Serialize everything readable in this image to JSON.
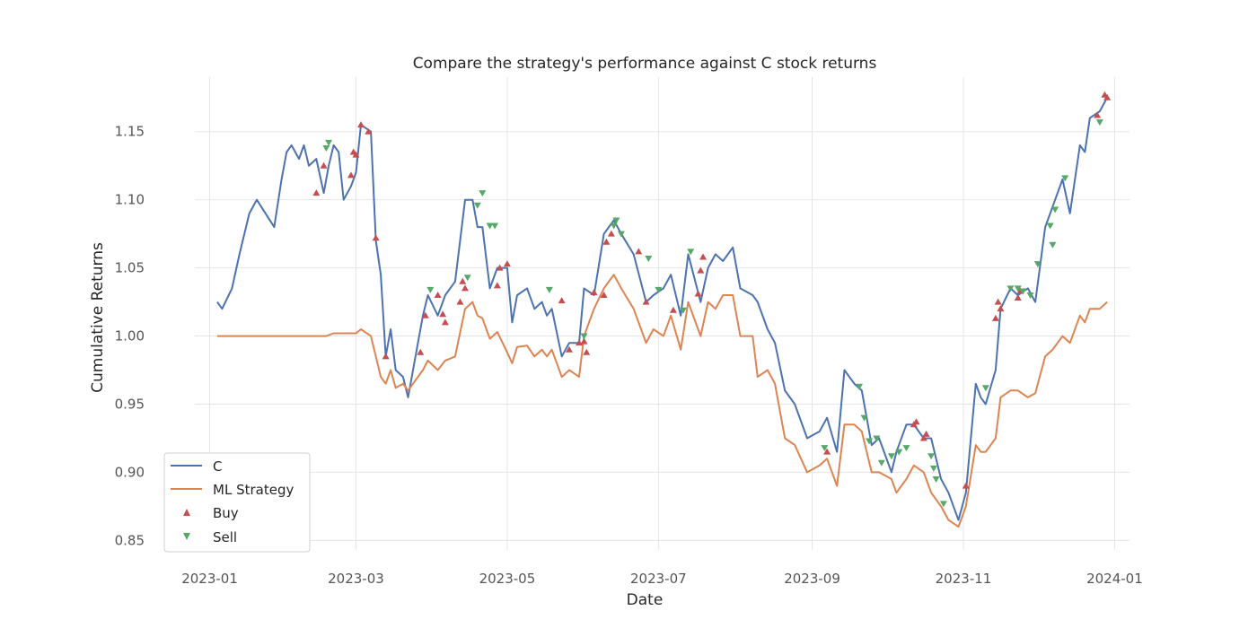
{
  "chart_data": {
    "type": "line",
    "title": "Compare the strategy's performance against C stock returns",
    "xlabel": "Date",
    "ylabel": "Cumulative Returns",
    "xlim": [
      "2022-12-26",
      "2024-01-07"
    ],
    "ylim": [
      0.843,
      1.19
    ],
    "xticks": [
      "2023-01",
      "2023-03",
      "2023-05",
      "2023-07",
      "2023-09",
      "2023-11",
      "2024-01"
    ],
    "xtick_dates": [
      "2023-01-01",
      "2023-03-01",
      "2023-05-01",
      "2023-07-01",
      "2023-09-01",
      "2023-11-01",
      "2024-01-01"
    ],
    "yticks": [
      0.85,
      0.9,
      0.95,
      1.0,
      1.05,
      1.1,
      1.15
    ],
    "ytick_labels": [
      "0.85",
      "0.90",
      "0.95",
      "1.00",
      "1.05",
      "1.10",
      "1.15"
    ],
    "grid": true,
    "legend": {
      "placement": "lower-left",
      "entries": [
        "C",
        "ML Strategy",
        "Buy",
        "Sell"
      ]
    },
    "colors": {
      "C": "#4c72b0",
      "ML Strategy": "#dd8452",
      "Buy": "#c44e52",
      "Sell": "#55a868",
      "grid": "#e5e5e5"
    },
    "series": [
      {
        "name": "C",
        "x": [
          "2023-01-04",
          "2023-01-06",
          "2023-01-10",
          "2023-01-13",
          "2023-01-17",
          "2023-01-20",
          "2023-01-27",
          "2023-01-30",
          "2023-02-01",
          "2023-02-03",
          "2023-02-06",
          "2023-02-08",
          "2023-02-10",
          "2023-02-13",
          "2023-02-16",
          "2023-02-18",
          "2023-02-20",
          "2023-02-22",
          "2023-02-24",
          "2023-02-27",
          "2023-03-01",
          "2023-03-03",
          "2023-03-07",
          "2023-03-09",
          "2023-03-11",
          "2023-03-13",
          "2023-03-15",
          "2023-03-17",
          "2023-03-20",
          "2023-03-22",
          "2023-03-24",
          "2023-03-28",
          "2023-03-30",
          "2023-04-03",
          "2023-04-06",
          "2023-04-10",
          "2023-04-14",
          "2023-04-17",
          "2023-04-19",
          "2023-04-21",
          "2023-04-24",
          "2023-04-27",
          "2023-05-01",
          "2023-05-03",
          "2023-05-05",
          "2023-05-09",
          "2023-05-12",
          "2023-05-15",
          "2023-05-17",
          "2023-05-19",
          "2023-05-23",
          "2023-05-26",
          "2023-05-30",
          "2023-06-01",
          "2023-06-05",
          "2023-06-09",
          "2023-06-13",
          "2023-06-16",
          "2023-06-21",
          "2023-06-26",
          "2023-06-29",
          "2023-07-03",
          "2023-07-06",
          "2023-07-10",
          "2023-07-13",
          "2023-07-18",
          "2023-07-21",
          "2023-07-24",
          "2023-07-27",
          "2023-07-31",
          "2023-08-03",
          "2023-08-08",
          "2023-08-10",
          "2023-08-14",
          "2023-08-17",
          "2023-08-21",
          "2023-08-25",
          "2023-08-30",
          "2023-09-04",
          "2023-09-07",
          "2023-09-11",
          "2023-09-14",
          "2023-09-18",
          "2023-09-21",
          "2023-09-25",
          "2023-09-28",
          "2023-10-03",
          "2023-10-05",
          "2023-10-09",
          "2023-10-12",
          "2023-10-16",
          "2023-10-19",
          "2023-10-23",
          "2023-10-26",
          "2023-10-30",
          "2023-11-02",
          "2023-11-06",
          "2023-11-08",
          "2023-11-10",
          "2023-11-14",
          "2023-11-16",
          "2023-11-20",
          "2023-11-23",
          "2023-11-27",
          "2023-11-30",
          "2023-12-04",
          "2023-12-07",
          "2023-12-11",
          "2023-12-14",
          "2023-12-18",
          "2023-12-20",
          "2023-12-22",
          "2023-12-26",
          "2023-12-29"
        ],
        "values": [
          1.025,
          1.02,
          1.035,
          1.06,
          1.09,
          1.1,
          1.08,
          1.115,
          1.135,
          1.14,
          1.13,
          1.14,
          1.125,
          1.13,
          1.105,
          1.125,
          1.14,
          1.135,
          1.1,
          1.11,
          1.12,
          1.155,
          1.15,
          1.07,
          1.045,
          0.985,
          1.005,
          0.975,
          0.97,
          0.955,
          0.975,
          1.015,
          1.03,
          1.015,
          1.03,
          1.04,
          1.1,
          1.1,
          1.08,
          1.08,
          1.035,
          1.05,
          1.05,
          1.01,
          1.03,
          1.035,
          1.02,
          1.025,
          1.015,
          1.02,
          0.985,
          0.995,
          0.995,
          1.035,
          1.03,
          1.075,
          1.085,
          1.075,
          1.06,
          1.025,
          1.03,
          1.035,
          1.045,
          1.015,
          1.06,
          1.025,
          1.05,
          1.06,
          1.055,
          1.065,
          1.035,
          1.03,
          1.025,
          1.005,
          0.995,
          0.96,
          0.95,
          0.925,
          0.93,
          0.94,
          0.915,
          0.975,
          0.965,
          0.96,
          0.92,
          0.925,
          0.9,
          0.915,
          0.935,
          0.935,
          0.925,
          0.925,
          0.895,
          0.885,
          0.865,
          0.885,
          0.965,
          0.955,
          0.95,
          0.975,
          1.02,
          1.035,
          1.03,
          1.035,
          1.025,
          1.08,
          1.095,
          1.115,
          1.09,
          1.14,
          1.135,
          1.16,
          1.165,
          1.175
        ]
      },
      {
        "name": "ML Strategy",
        "x": [
          "2023-01-04",
          "2023-02-17",
          "2023-02-20",
          "2023-02-24",
          "2023-03-01",
          "2023-03-03",
          "2023-03-07",
          "2023-03-09",
          "2023-03-11",
          "2023-03-13",
          "2023-03-15",
          "2023-03-17",
          "2023-03-20",
          "2023-03-22",
          "2023-03-24",
          "2023-03-28",
          "2023-03-30",
          "2023-04-03",
          "2023-04-06",
          "2023-04-10",
          "2023-04-14",
          "2023-04-17",
          "2023-04-19",
          "2023-04-21",
          "2023-04-24",
          "2023-04-27",
          "2023-05-01",
          "2023-05-03",
          "2023-05-05",
          "2023-05-09",
          "2023-05-12",
          "2023-05-15",
          "2023-05-17",
          "2023-05-19",
          "2023-05-23",
          "2023-05-26",
          "2023-05-30",
          "2023-06-01",
          "2023-06-05",
          "2023-06-09",
          "2023-06-13",
          "2023-06-16",
          "2023-06-21",
          "2023-06-26",
          "2023-06-29",
          "2023-07-03",
          "2023-07-06",
          "2023-07-10",
          "2023-07-13",
          "2023-07-18",
          "2023-07-21",
          "2023-07-24",
          "2023-07-27",
          "2023-07-31",
          "2023-08-03",
          "2023-08-08",
          "2023-08-10",
          "2023-08-14",
          "2023-08-17",
          "2023-08-21",
          "2023-08-25",
          "2023-08-30",
          "2023-09-04",
          "2023-09-07",
          "2023-09-11",
          "2023-09-14",
          "2023-09-18",
          "2023-09-21",
          "2023-09-25",
          "2023-09-28",
          "2023-10-03",
          "2023-10-05",
          "2023-10-09",
          "2023-10-12",
          "2023-10-16",
          "2023-10-19",
          "2023-10-23",
          "2023-10-26",
          "2023-10-30",
          "2023-11-02",
          "2023-11-06",
          "2023-11-08",
          "2023-11-10",
          "2023-11-14",
          "2023-11-16",
          "2023-11-20",
          "2023-11-23",
          "2023-11-27",
          "2023-11-30",
          "2023-12-04",
          "2023-12-07",
          "2023-12-11",
          "2023-12-14",
          "2023-12-18",
          "2023-12-20",
          "2023-12-22",
          "2023-12-26",
          "2023-12-29"
        ],
        "values": [
          1.0,
          1.0,
          1.002,
          1.002,
          1.002,
          1.005,
          1.0,
          0.985,
          0.97,
          0.965,
          0.975,
          0.962,
          0.965,
          0.96,
          0.965,
          0.975,
          0.982,
          0.975,
          0.982,
          0.985,
          1.02,
          1.025,
          1.015,
          1.013,
          0.998,
          1.003,
          0.988,
          0.98,
          0.992,
          0.993,
          0.985,
          0.99,
          0.985,
          0.99,
          0.97,
          0.975,
          0.97,
          1.0,
          1.02,
          1.035,
          1.045,
          1.035,
          1.02,
          0.995,
          1.005,
          1.0,
          1.015,
          0.99,
          1.025,
          1.0,
          1.025,
          1.02,
          1.03,
          1.03,
          1.0,
          1.0,
          0.97,
          0.975,
          0.965,
          0.925,
          0.92,
          0.9,
          0.905,
          0.91,
          0.89,
          0.935,
          0.935,
          0.93,
          0.9,
          0.9,
          0.895,
          0.885,
          0.895,
          0.905,
          0.9,
          0.885,
          0.875,
          0.865,
          0.86,
          0.875,
          0.92,
          0.915,
          0.915,
          0.925,
          0.955,
          0.96,
          0.96,
          0.955,
          0.958,
          0.985,
          0.99,
          1.0,
          0.995,
          1.015,
          1.01,
          1.02,
          1.02,
          1.025
        ]
      }
    ],
    "markers": [
      {
        "name": "Buy",
        "x": [
          "2023-02-13",
          "2023-02-16",
          "2023-02-27",
          "2023-02-28",
          "2023-03-01",
          "2023-03-03",
          "2023-03-06",
          "2023-03-09",
          "2023-03-13",
          "2023-03-27",
          "2023-03-29",
          "2023-04-03",
          "2023-04-05",
          "2023-04-06",
          "2023-04-12",
          "2023-04-13",
          "2023-04-14",
          "2023-04-27",
          "2023-04-28",
          "2023-05-01",
          "2023-05-23",
          "2023-05-26",
          "2023-05-30",
          "2023-06-01",
          "2023-06-02",
          "2023-06-05",
          "2023-06-09",
          "2023-06-10",
          "2023-06-12",
          "2023-06-23",
          "2023-06-26",
          "2023-07-07",
          "2023-07-17",
          "2023-07-18",
          "2023-07-19",
          "2023-09-07",
          "2023-10-12",
          "2023-10-13",
          "2023-10-16",
          "2023-10-17",
          "2023-11-02",
          "2023-11-14",
          "2023-11-15",
          "2023-11-16",
          "2023-11-23",
          "2023-11-24",
          "2023-12-25",
          "2023-12-28",
          "2023-12-29"
        ],
        "values": [
          1.105,
          1.125,
          1.118,
          1.135,
          1.133,
          1.155,
          1.15,
          1.072,
          0.985,
          0.988,
          1.015,
          1.03,
          1.016,
          1.01,
          1.025,
          1.04,
          1.035,
          1.037,
          1.05,
          1.053,
          1.026,
          0.99,
          0.995,
          0.996,
          0.988,
          1.032,
          1.03,
          1.069,
          1.075,
          1.062,
          1.025,
          1.019,
          1.031,
          1.048,
          1.058,
          0.915,
          0.935,
          0.937,
          0.925,
          0.928,
          0.89,
          1.013,
          1.025,
          1.02,
          1.028,
          1.033,
          1.162,
          1.177,
          1.175
        ]
      },
      {
        "name": "Sell",
        "x": [
          "2023-02-17",
          "2023-02-18",
          "2023-03-31",
          "2023-04-15",
          "2023-04-19",
          "2023-04-21",
          "2023-04-24",
          "2023-04-26",
          "2023-05-18",
          "2023-06-01",
          "2023-06-13",
          "2023-06-14",
          "2023-06-16",
          "2023-06-27",
          "2023-07-01",
          "2023-07-11",
          "2023-07-14",
          "2023-09-06",
          "2023-09-20",
          "2023-09-22",
          "2023-09-24",
          "2023-09-27",
          "2023-09-29",
          "2023-10-03",
          "2023-10-06",
          "2023-10-09",
          "2023-10-19",
          "2023-10-20",
          "2023-10-21",
          "2023-10-24",
          "2023-11-10",
          "2023-11-20",
          "2023-11-23",
          "2023-11-25",
          "2023-11-28",
          "2023-12-01",
          "2023-12-06",
          "2023-12-07",
          "2023-12-08",
          "2023-12-12",
          "2023-12-26"
        ],
        "values": [
          1.138,
          1.142,
          1.034,
          1.043,
          1.096,
          1.105,
          1.081,
          1.081,
          1.034,
          1.0,
          1.081,
          1.085,
          1.075,
          1.057,
          1.034,
          1.019,
          1.062,
          0.918,
          0.963,
          0.94,
          0.923,
          0.925,
          0.907,
          0.912,
          0.915,
          0.918,
          0.912,
          0.903,
          0.895,
          0.877,
          0.962,
          1.035,
          1.035,
          1.033,
          1.03,
          1.053,
          1.081,
          1.067,
          1.093,
          1.116,
          1.157
        ]
      }
    ]
  }
}
